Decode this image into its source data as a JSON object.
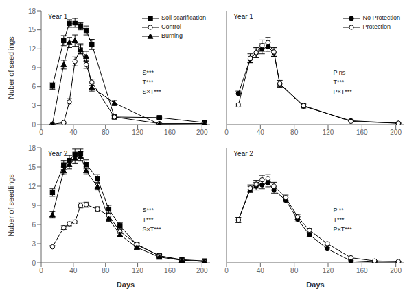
{
  "chart_data": [
    {
      "type": "line",
      "title": "Year 1",
      "ylabel": "Nuber of seedlings",
      "xlim": [
        0,
        210
      ],
      "ylim": [
        0,
        18
      ],
      "xticks": [
        0,
        40,
        80,
        120,
        160,
        200
      ],
      "yticks": [
        0,
        3,
        6,
        9,
        12,
        15,
        18
      ],
      "grid": false,
      "legend": "upper right",
      "annotation": "S***\nT***\nS×T***",
      "series": [
        {
          "name": "Soil scarification",
          "color": "#000000",
          "marker": "square",
          "x": [
            14,
            28,
            35,
            42,
            49,
            56,
            63,
            91,
            147,
            203
          ],
          "values": [
            6.1,
            13.3,
            16.0,
            16.1,
            15.6,
            14.9,
            12.7,
            1.2,
            1.1,
            0.3
          ],
          "errors": [
            0.5,
            0.8,
            0.6,
            0.7,
            0.6,
            0.7,
            0.8,
            0.3,
            0.2,
            0.1
          ]
        },
        {
          "name": "Control",
          "color": "#000000",
          "marker": "circle_open",
          "x": [
            14,
            28,
            35,
            42,
            49,
            56,
            63,
            91,
            147,
            203
          ],
          "values": [
            0.05,
            0.3,
            3.6,
            10.0,
            12.0,
            9.5,
            6.7,
            1.2,
            0.15,
            0.15
          ],
          "errors": [
            0.02,
            0.1,
            0.5,
            0.7,
            0.8,
            0.6,
            0.5,
            0.2,
            0.05,
            0.05
          ]
        },
        {
          "name": "Burning",
          "color": "#000000",
          "marker": "triangle",
          "x": [
            14,
            28,
            35,
            42,
            49,
            56,
            63,
            91,
            147,
            203
          ],
          "values": [
            0.05,
            9.5,
            13.0,
            13.3,
            11.9,
            10.8,
            5.9,
            3.4,
            0.05,
            0.15
          ],
          "errors": [
            0.02,
            0.7,
            0.8,
            0.9,
            0.7,
            0.8,
            0.6,
            0.4,
            0.02,
            0.05
          ]
        }
      ]
    },
    {
      "type": "line",
      "title": "Year 1",
      "xlim": [
        0,
        210
      ],
      "ylim": [
        0,
        18
      ],
      "xticks": [
        0,
        40,
        80,
        120,
        160,
        200
      ],
      "yticks": [
        0,
        3,
        6,
        9,
        12,
        15,
        18
      ],
      "grid": false,
      "legend": "upper right",
      "tick_labels": "x",
      "annotation": "P ns\nT***\nP×T***",
      "series": [
        {
          "name": "No Protection",
          "color": "#000000",
          "marker": "circle",
          "x": [
            14,
            28,
            35,
            42,
            49,
            56,
            63,
            91,
            147,
            203
          ],
          "values": [
            4.9,
            10.4,
            11.3,
            12.0,
            12.3,
            11.4,
            6.4,
            2.9,
            0.6,
            0.2
          ],
          "errors": [
            0.4,
            0.6,
            0.7,
            0.8,
            0.7,
            0.6,
            0.5,
            0.3,
            0.15,
            0.05
          ]
        },
        {
          "name": "Protection",
          "color": "#000000",
          "marker": "circle_open",
          "x": [
            14,
            28,
            35,
            42,
            49,
            56,
            63,
            91,
            147,
            203
          ],
          "values": [
            3.1,
            10.5,
            11.4,
            12.5,
            13.0,
            11.5,
            6.5,
            3.0,
            0.5,
            0.2
          ],
          "errors": [
            0.3,
            0.7,
            0.8,
            0.9,
            0.8,
            0.7,
            0.5,
            0.3,
            0.1,
            0.05
          ]
        }
      ]
    },
    {
      "type": "line",
      "title": "Year 2",
      "ylabel": "Nuber of seedlings",
      "xlabel": "Days",
      "xlim": [
        0,
        210
      ],
      "ylim": [
        0,
        18
      ],
      "xticks": [
        0,
        40,
        80,
        120,
        160,
        200
      ],
      "yticks": [
        0,
        3,
        6,
        9,
        12,
        15,
        18
      ],
      "grid": false,
      "annotation": "S***\nT***\nS×T***",
      "series": [
        {
          "name": "Soil scarification",
          "color": "#000000",
          "marker": "square",
          "x": [
            14,
            28,
            35,
            42,
            49,
            56,
            70,
            84,
            98,
            119,
            147,
            175,
            203
          ],
          "values": [
            11.0,
            15.3,
            16.0,
            17.0,
            17.1,
            15.4,
            13.2,
            8.4,
            5.8,
            2.8,
            1.1,
            0.5,
            0.3
          ],
          "errors": [
            0.6,
            0.7,
            0.8,
            0.8,
            0.7,
            0.7,
            0.6,
            0.6,
            0.5,
            0.3,
            0.2,
            0.1,
            0.05
          ]
        },
        {
          "name": "Control",
          "color": "#000000",
          "marker": "circle_open",
          "x": [
            14,
            28,
            35,
            42,
            49,
            56,
            70,
            84,
            98,
            119,
            147,
            175,
            203
          ],
          "values": [
            2.5,
            5.5,
            6.1,
            6.4,
            9.0,
            9.1,
            8.4,
            7.4,
            4.9,
            2.9,
            1.1,
            0.4,
            0.2
          ],
          "errors": [
            0.2,
            0.3,
            0.3,
            0.3,
            0.4,
            0.4,
            0.4,
            0.4,
            0.3,
            0.2,
            0.15,
            0.1,
            0.05
          ]
        },
        {
          "name": "Burning",
          "color": "#000000",
          "marker": "triangle",
          "x": [
            14,
            28,
            35,
            42,
            49,
            56,
            70,
            84,
            98,
            119,
            147,
            175,
            203
          ],
          "values": [
            7.5,
            14.4,
            15.4,
            16.4,
            16.7,
            14.4,
            11.9,
            6.9,
            4.4,
            2.4,
            0.9,
            0.4,
            0.2
          ],
          "errors": [
            0.5,
            0.6,
            0.7,
            0.8,
            0.7,
            0.6,
            0.5,
            0.4,
            0.3,
            0.2,
            0.1,
            0.08,
            0.04
          ]
        }
      ]
    },
    {
      "type": "line",
      "title": "Year 2",
      "xlabel": "Days",
      "xlim": [
        0,
        210
      ],
      "ylim": [
        0,
        18
      ],
      "xticks": [
        0,
        40,
        80,
        120,
        160,
        200
      ],
      "yticks": [
        0,
        3,
        6,
        9,
        12,
        15,
        18
      ],
      "grid": false,
      "tick_labels": "x",
      "annotation": "P **\nT***\nP×T***",
      "series": [
        {
          "name": "No Protection",
          "color": "#000000",
          "marker": "circle",
          "x": [
            14,
            28,
            35,
            42,
            49,
            56,
            70,
            84,
            98,
            119,
            147,
            175,
            203
          ],
          "values": [
            6.7,
            11.5,
            12.0,
            12.2,
            12.5,
            11.4,
            9.8,
            6.8,
            4.4,
            2.2,
            0.3,
            0.1,
            0.1
          ],
          "errors": [
            0.4,
            0.5,
            0.6,
            0.6,
            0.6,
            0.5,
            0.4,
            0.4,
            0.3,
            0.2,
            0.1,
            0.05,
            0.02
          ]
        },
        {
          "name": "Protection",
          "color": "#000000",
          "marker": "circle_open",
          "x": [
            14,
            28,
            35,
            42,
            49,
            56,
            70,
            84,
            98,
            119,
            147,
            175,
            203
          ],
          "values": [
            6.7,
            11.7,
            12.3,
            13.0,
            13.2,
            12.0,
            10.2,
            7.2,
            5.1,
            3.0,
            0.8,
            0.3,
            0.2
          ],
          "errors": [
            0.4,
            0.5,
            0.6,
            0.7,
            0.6,
            0.6,
            0.4,
            0.4,
            0.3,
            0.2,
            0.1,
            0.05,
            0.02
          ]
        }
      ]
    }
  ]
}
